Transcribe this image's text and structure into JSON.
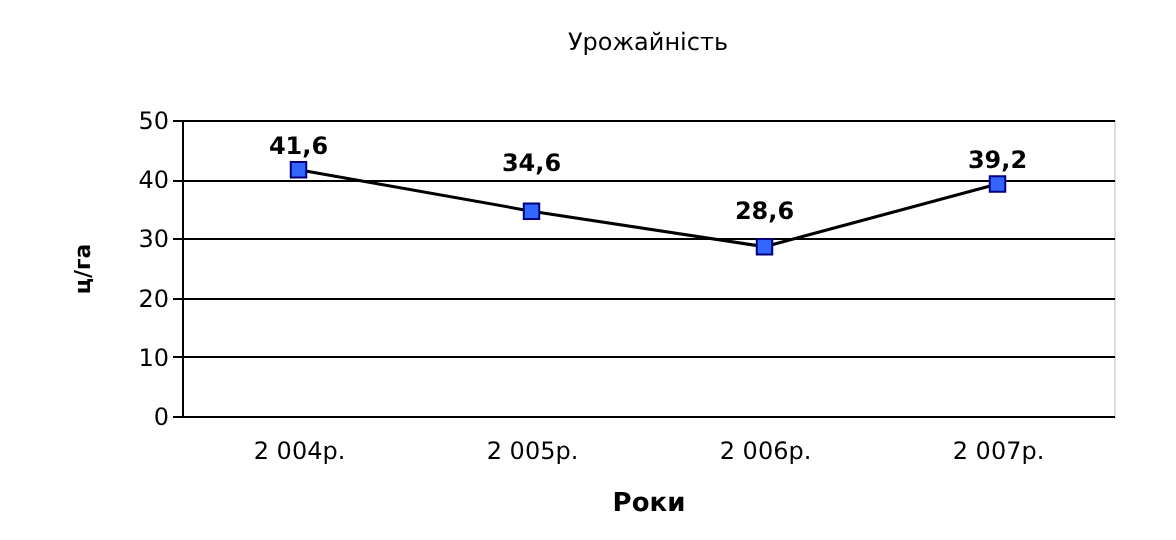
{
  "chart_data": {
    "type": "line",
    "title": "Урожайність",
    "xlabel": "Роки",
    "ylabel": "ц/га",
    "categories": [
      "2 004р.",
      "2 005р.",
      "2 006р.",
      "2 007р."
    ],
    "series": [
      {
        "color": "#3366ff",
        "values": [
          41.6,
          34.6,
          28.6,
          39.2
        ],
        "value_labels": [
          "41,6",
          "34,6",
          "28,6",
          "39,2"
        ]
      }
    ],
    "ylim": [
      0,
      50
    ],
    "yticks": [
      0,
      10,
      20,
      30,
      40,
      50
    ],
    "grid": "y",
    "marker": "square",
    "line_style": "solid"
  }
}
